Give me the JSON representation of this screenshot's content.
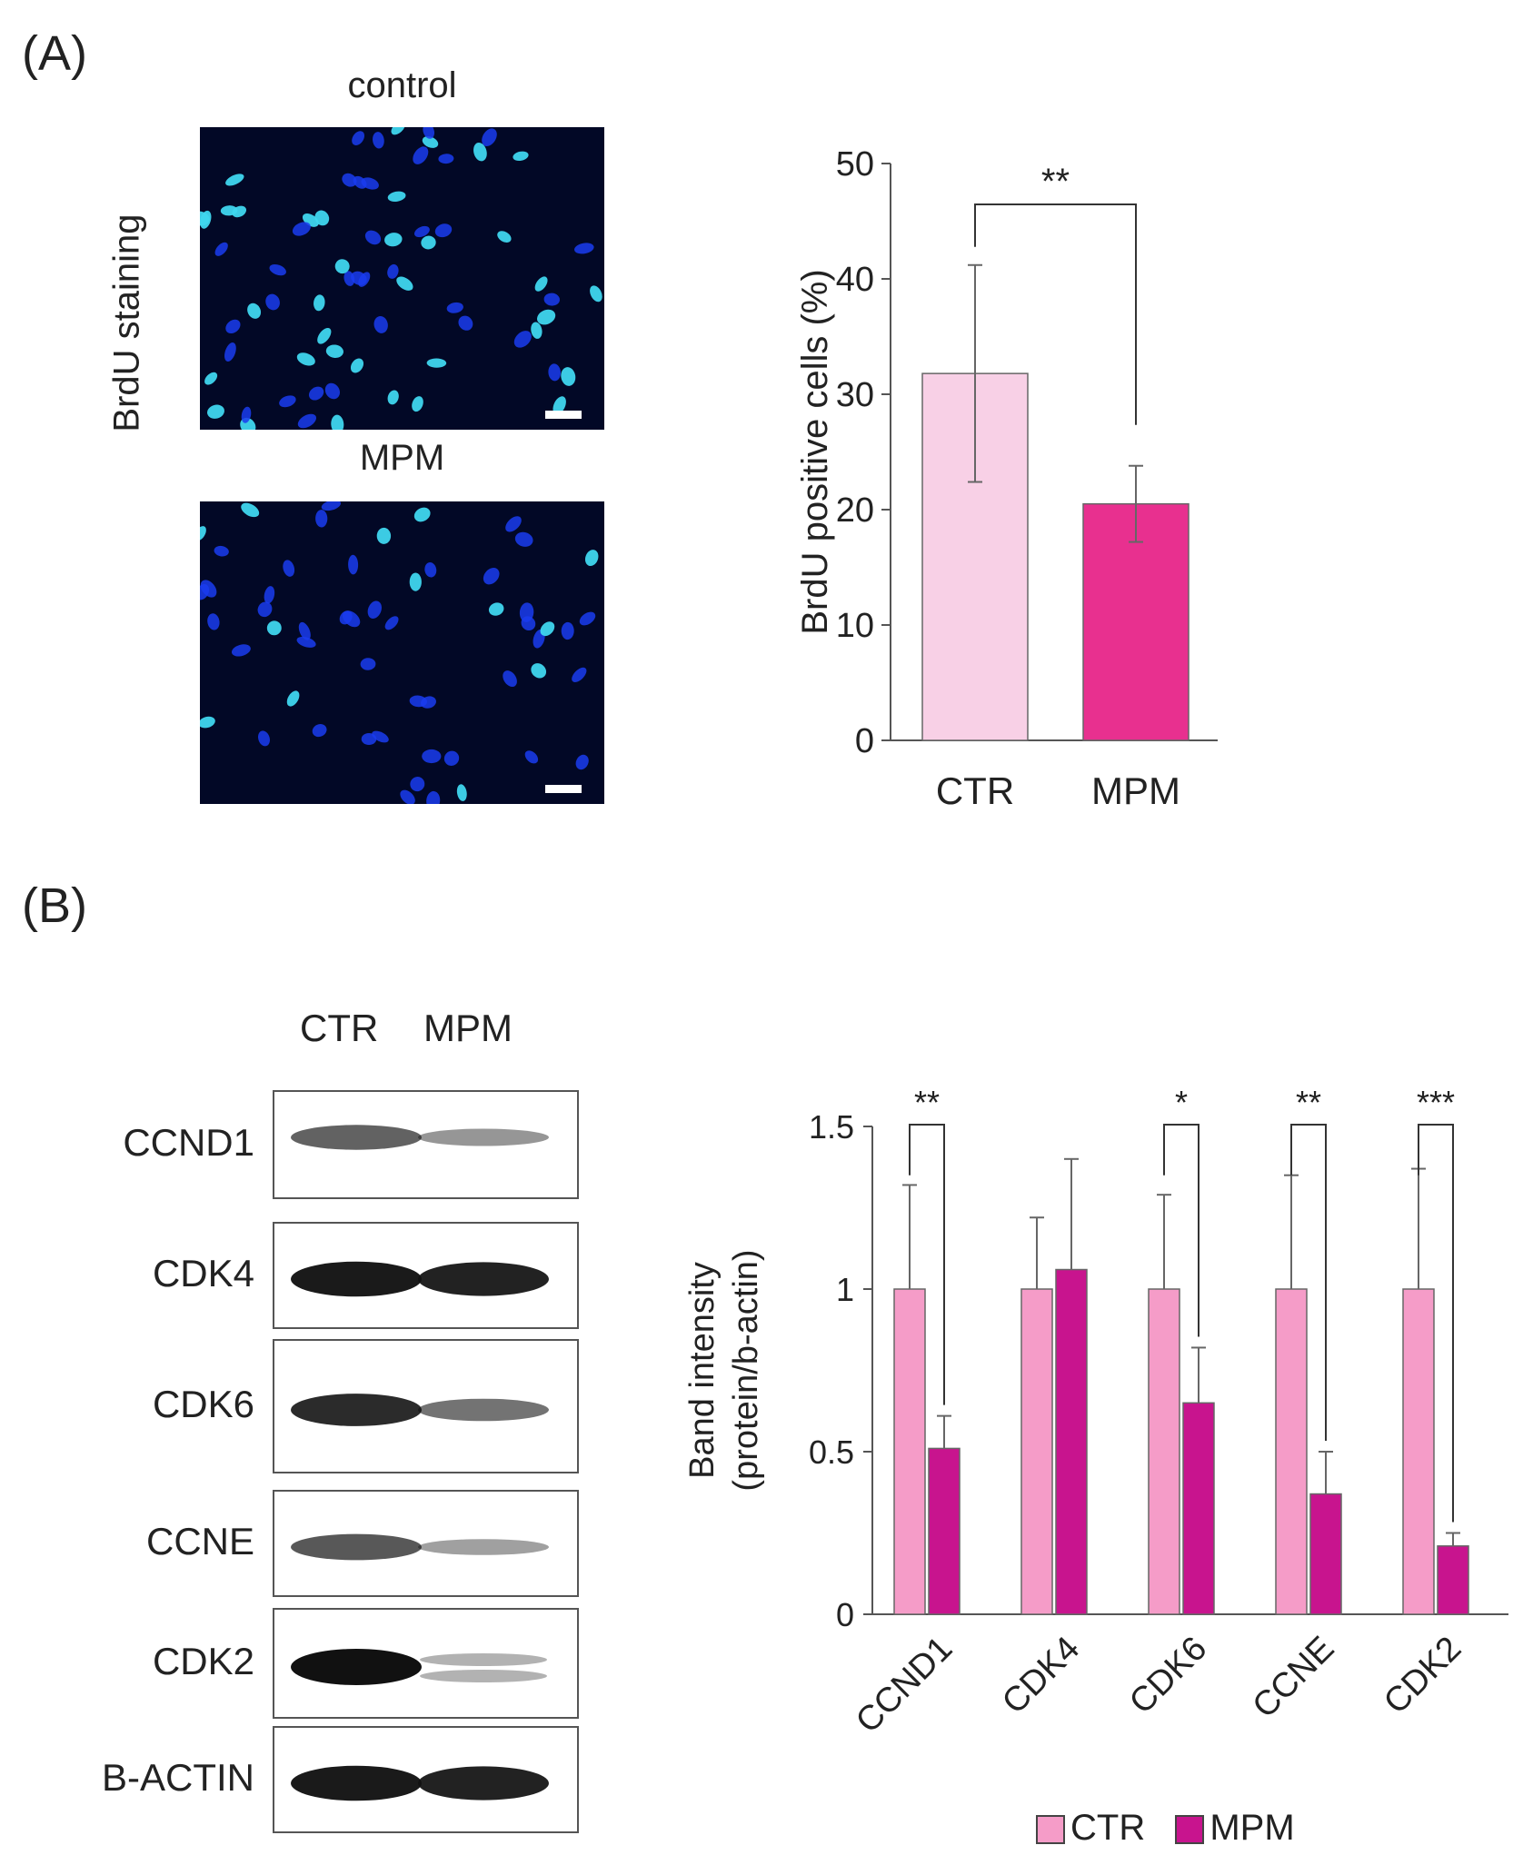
{
  "panel_a": {
    "label": "(A)",
    "side_label": "BrdU staining",
    "image_titles": [
      "control",
      "MPM"
    ]
  },
  "panel_b": {
    "label": "(B)",
    "lanes": [
      "CTR",
      "MPM"
    ],
    "blots": [
      "CCND1",
      "CDK4",
      "CDK6",
      "CCNE",
      "CDK2",
      "B-ACTIN"
    ]
  },
  "colors": {
    "ctr_a": "#f8d0e6",
    "mpm_a": "#e8308f",
    "ctr_b": "#f59cc8",
    "mpm_b": "#c8148e",
    "micro_bg": "#020826"
  },
  "chart_data": [
    {
      "type": "bar",
      "categories": [
        "CTR",
        "MPM"
      ],
      "values": [
        31.8,
        20.5
      ],
      "errors": [
        9.4,
        3.3
      ],
      "ylabel": "BrdU positive cells (%)",
      "ylim": [
        0,
        50
      ],
      "yticks": [
        0,
        10,
        20,
        30,
        40,
        50
      ],
      "significance": [
        {
          "from": "CTR",
          "to": "MPM",
          "label": "**"
        }
      ],
      "grid": false
    },
    {
      "type": "bar",
      "categories": [
        "CCND1",
        "CDK4",
        "CDK6",
        "CCNE",
        "CDK2"
      ],
      "series": [
        {
          "name": "CTR",
          "values": [
            1,
            1,
            1,
            1,
            1
          ],
          "errors": [
            0.32,
            0.22,
            0.29,
            0.35,
            0.37
          ]
        },
        {
          "name": "MPM",
          "values": [
            0.51,
            1.06,
            0.65,
            0.37,
            0.21
          ],
          "errors": [
            0.1,
            0.34,
            0.17,
            0.13,
            0.04
          ]
        }
      ],
      "ylabel_lines": [
        "Band intensity",
        "(protein/b-actin)"
      ],
      "ylim": [
        0,
        1.5
      ],
      "yticks": [
        0,
        0.5,
        1,
        1.5
      ],
      "ytick_labels": [
        "0",
        "0.5",
        "1",
        "1.5"
      ],
      "significance": [
        {
          "category": "CCND1",
          "label": "**"
        },
        {
          "category": "CDK6",
          "label": "*"
        },
        {
          "category": "CCNE",
          "label": "**"
        },
        {
          "category": "CDK2",
          "label": "***"
        }
      ],
      "legend_position": "bottom",
      "grid": false
    }
  ]
}
